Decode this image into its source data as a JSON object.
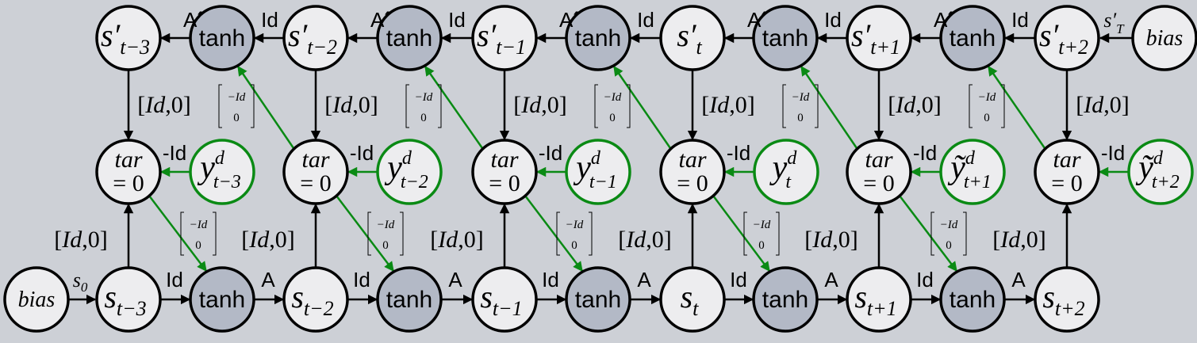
{
  "colors": {
    "background": "#cdd0d6",
    "node_fill": "#ededef",
    "tanh_fill": "#b3b9c6",
    "target_stroke": "#0a8a14"
  },
  "labels": {
    "tanh": "tanh",
    "bias": "bias",
    "tar": "tar",
    "eq_zero": "= 0",
    "id": "Id",
    "a": "A",
    "a_prime": "A´",
    "minus_id": "-Id",
    "id_zero_bracket": "[Id,0]",
    "matrix_minus_id": "−Id",
    "matrix_zero": "0",
    "s_zero": "s",
    "s_zero_sub": "0",
    "s_t_prime": "s′",
    "s_t_prime_sub": "T"
  },
  "time_steps": [
    {
      "sub": "t−3",
      "target_base": "y",
      "target_sup": "d",
      "target_sub": "t−3"
    },
    {
      "sub": "t−2",
      "target_base": "y",
      "target_sup": "d",
      "target_sub": "t−2"
    },
    {
      "sub": "t−1",
      "target_base": "y",
      "target_sup": "d",
      "target_sub": "t−1"
    },
    {
      "sub": "t",
      "target_base": "y",
      "target_sup": "d",
      "target_sub": "t"
    },
    {
      "sub": "t+1",
      "target_base": "ỹ",
      "target_sup": "d",
      "target_sub": "t+1"
    },
    {
      "sub": "t+2",
      "target_base": "ỹ",
      "target_sup": "d",
      "target_sub": "t+2"
    }
  ],
  "prime_symbol": "s′",
  "state_symbol": "s"
}
